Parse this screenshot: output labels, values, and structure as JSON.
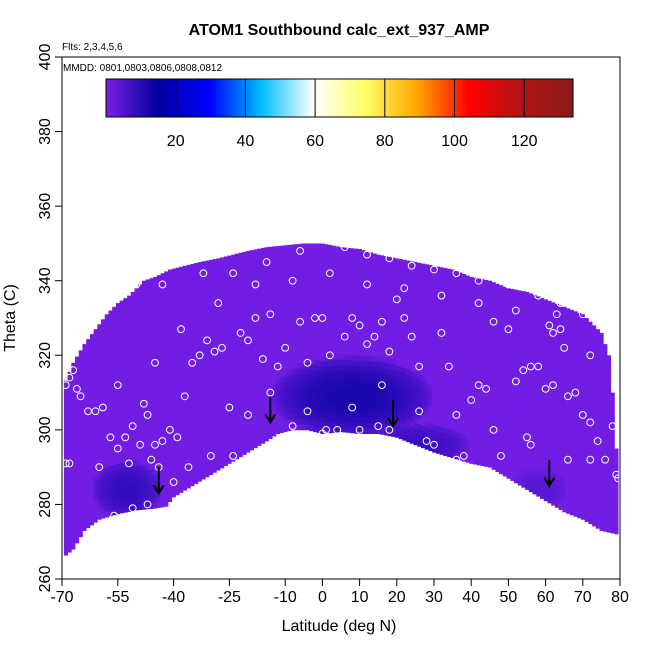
{
  "chart_data": {
    "type": "heatmap",
    "title": "ATOM1 Southbound calc_ext_937_AMP",
    "annotations": [
      "Flts: 2,3,4,5,6",
      "MMDD: 0801,0803,0806,0808,0812"
    ],
    "xlabel": "Latitude (deg N)",
    "ylabel": "Theta (C)",
    "xlim": [
      -70,
      80
    ],
    "ylim": [
      260,
      400
    ],
    "x_ticks": [
      -70,
      -55,
      -40,
      -25,
      -10,
      0,
      10,
      20,
      30,
      40,
      50,
      60,
      70,
      80
    ],
    "y_ticks": [
      260,
      280,
      300,
      320,
      340,
      360,
      380,
      400
    ],
    "x_ticks_text": [
      "-70",
      "-55",
      "-40",
      "-25",
      "-10",
      "0",
      "10",
      "20",
      "30",
      "40",
      "50",
      "60",
      "70",
      "80"
    ],
    "y_ticks_text": [
      "260",
      "280",
      "300",
      "320",
      "340",
      "360",
      "380",
      "400"
    ],
    "grid": false,
    "colorbar": {
      "placement": "top-inside",
      "range": [
        0,
        134
      ],
      "ticks": [
        20,
        40,
        60,
        80,
        100,
        120
      ],
      "ticks_text": [
        "20",
        "40",
        "60",
        "80",
        "100",
        "120"
      ],
      "colors": [
        "#7a1fe8",
        "#00009f",
        "#0000ff",
        "#00bfff",
        "#ffffff",
        "#ffff66",
        "#ffa500",
        "#ff0000",
        "#b01515",
        "#8b1a1a"
      ]
    },
    "upper_boundary": [
      [
        -69.5,
        312
      ],
      [
        -67,
        318
      ],
      [
        -64,
        323
      ],
      [
        -61,
        327
      ],
      [
        -58,
        331
      ],
      [
        -55,
        334
      ],
      [
        -52,
        336
      ],
      [
        -48,
        340
      ],
      [
        -45,
        341
      ],
      [
        -41,
        343
      ],
      [
        -37,
        344
      ],
      [
        -33,
        345
      ],
      [
        -28,
        346
      ],
      [
        -24,
        347
      ],
      [
        -20,
        348
      ],
      [
        -15,
        349
      ],
      [
        -10,
        349.5
      ],
      [
        -5,
        350
      ],
      [
        0,
        350
      ],
      [
        5,
        349
      ],
      [
        10,
        348.5
      ],
      [
        15,
        347
      ],
      [
        20,
        346
      ],
      [
        25,
        345
      ],
      [
        30,
        344
      ],
      [
        35,
        343
      ],
      [
        40,
        341
      ],
      [
        45,
        340
      ],
      [
        50,
        338
      ],
      [
        55,
        337
      ],
      [
        60,
        335
      ],
      [
        65,
        333
      ],
      [
        70,
        331
      ],
      [
        75,
        326
      ],
      [
        77,
        320
      ],
      [
        78,
        310
      ],
      [
        79,
        295
      ],
      [
        79.5,
        286
      ]
    ],
    "lower_boundary": [
      [
        -69.5,
        266
      ],
      [
        -67,
        268
      ],
      [
        -64,
        273
      ],
      [
        -60,
        276
      ],
      [
        -55,
        277.5
      ],
      [
        -50,
        278.5
      ],
      [
        -45,
        279
      ],
      [
        -42,
        279.5
      ],
      [
        -40,
        282
      ],
      [
        -35,
        285
      ],
      [
        -30,
        288
      ],
      [
        -25,
        291
      ],
      [
        -20,
        294
      ],
      [
        -15,
        297
      ],
      [
        -12,
        299
      ],
      [
        -8,
        300
      ],
      [
        -4,
        300
      ],
      [
        0,
        299
      ],
      [
        5,
        299.5
      ],
      [
        10,
        299
      ],
      [
        15,
        299
      ],
      [
        20,
        298
      ],
      [
        25,
        296
      ],
      [
        30,
        294
      ],
      [
        35,
        292.5
      ],
      [
        40,
        291
      ],
      [
        45,
        290
      ],
      [
        50,
        287
      ],
      [
        55,
        284
      ],
      [
        60,
        281
      ],
      [
        65,
        278
      ],
      [
        70,
        276
      ],
      [
        75,
        273
      ],
      [
        79.5,
        272
      ]
    ],
    "background_value": 1,
    "regions": [
      {
        "lat": [
          -14,
          30
        ],
        "theta": [
          298,
          320
        ],
        "peak_value": 12
      },
      {
        "lat": [
          -62,
          -43
        ],
        "theta": [
          276,
          292
        ],
        "peak_value": 9
      },
      {
        "lat": [
          10,
          40
        ],
        "theta": [
          290,
          302
        ],
        "peak_value": 8
      },
      {
        "lat": [
          50,
          66
        ],
        "theta": [
          278,
          290
        ],
        "peak_value": 4
      }
    ],
    "points": [
      [
        -69,
        312
      ],
      [
        -68,
        314
      ],
      [
        -67,
        316
      ],
      [
        -66,
        311
      ],
      [
        -65,
        309
      ],
      [
        -63,
        305
      ],
      [
        -61,
        305
      ],
      [
        -59,
        306
      ],
      [
        -57,
        298
      ],
      [
        -55,
        295
      ],
      [
        -53,
        298
      ],
      [
        -51,
        301
      ],
      [
        -49,
        296
      ],
      [
        -48,
        307
      ],
      [
        -47,
        304
      ],
      [
        -46,
        292
      ],
      [
        -45,
        296
      ],
      [
        -43,
        297
      ],
      [
        -41,
        300
      ],
      [
        -39,
        298
      ],
      [
        -37,
        309
      ],
      [
        -35,
        318
      ],
      [
        -33,
        320
      ],
      [
        -31,
        324
      ],
      [
        -29,
        321
      ],
      [
        -27,
        322
      ],
      [
        -25,
        306
      ],
      [
        -24,
        293
      ],
      [
        -22,
        326
      ],
      [
        -20,
        324
      ],
      [
        -18,
        330
      ],
      [
        -16,
        319
      ],
      [
        -14,
        331
      ],
      [
        -12,
        317
      ],
      [
        -10,
        322
      ],
      [
        -8,
        301
      ],
      [
        -6,
        329
      ],
      [
        -4,
        318
      ],
      [
        -2,
        330
      ],
      [
        0,
        299
      ],
      [
        0,
        330
      ],
      [
        1,
        300
      ],
      [
        2,
        320
      ],
      [
        4,
        300
      ],
      [
        6,
        325
      ],
      [
        8,
        330
      ],
      [
        10,
        300
      ],
      [
        10,
        328
      ],
      [
        12,
        323
      ],
      [
        14,
        325
      ],
      [
        15,
        301
      ],
      [
        16,
        329
      ],
      [
        18,
        300
      ],
      [
        18,
        321
      ],
      [
        20,
        335
      ],
      [
        22,
        330
      ],
      [
        24,
        325
      ],
      [
        26,
        317
      ],
      [
        28,
        297
      ],
      [
        30,
        296
      ],
      [
        32,
        326
      ],
      [
        34,
        317
      ],
      [
        36,
        292
      ],
      [
        38,
        293
      ],
      [
        40,
        308
      ],
      [
        42,
        312
      ],
      [
        44,
        311
      ],
      [
        46,
        329
      ],
      [
        48,
        293
      ],
      [
        50,
        327
      ],
      [
        52,
        313
      ],
      [
        54,
        316
      ],
      [
        55,
        298
      ],
      [
        56,
        317
      ],
      [
        58,
        317
      ],
      [
        60,
        311
      ],
      [
        61,
        328
      ],
      [
        62,
        312
      ],
      [
        63,
        331
      ],
      [
        64,
        327
      ],
      [
        65,
        322
      ],
      [
        66,
        309
      ],
      [
        68,
        310
      ],
      [
        70,
        304
      ],
      [
        72,
        302
      ],
      [
        74,
        297
      ],
      [
        76,
        292
      ],
      [
        78,
        301
      ],
      [
        79,
        288
      ],
      [
        79.5,
        287
      ],
      [
        -69,
        291
      ],
      [
        -68,
        291
      ],
      [
        -56,
        277
      ],
      [
        -51,
        279
      ],
      [
        -47,
        280
      ],
      [
        -42,
        278
      ],
      [
        -35,
        283
      ],
      [
        -28,
        287
      ],
      [
        -65,
        338
      ],
      [
        -58,
        337
      ],
      [
        -50,
        339
      ],
      [
        -43,
        339
      ],
      [
        -32,
        342
      ],
      [
        -24,
        342
      ],
      [
        -15,
        345
      ],
      [
        -6,
        348
      ],
      [
        0,
        351
      ],
      [
        6,
        349
      ],
      [
        12,
        347
      ],
      [
        18,
        346
      ],
      [
        24,
        344
      ],
      [
        30,
        343
      ],
      [
        36,
        342
      ],
      [
        42,
        340
      ],
      [
        50,
        339
      ],
      [
        58,
        336
      ],
      [
        64,
        334
      ],
      [
        70,
        331
      ],
      [
        -40,
        286
      ],
      [
        -36,
        290
      ],
      [
        -30,
        293
      ],
      [
        -20,
        304
      ],
      [
        -14,
        310
      ],
      [
        -4,
        305
      ],
      [
        8,
        306
      ],
      [
        16,
        312
      ],
      [
        26,
        305
      ],
      [
        36,
        304
      ],
      [
        46,
        300
      ],
      [
        56,
        296
      ],
      [
        66,
        292
      ],
      [
        72,
        292
      ],
      [
        -55,
        312
      ],
      [
        -45,
        318
      ],
      [
        -38,
        327
      ],
      [
        -28,
        334
      ],
      [
        -18,
        339
      ],
      [
        -8,
        340
      ],
      [
        2,
        342
      ],
      [
        12,
        339
      ],
      [
        22,
        338
      ],
      [
        32,
        336
      ],
      [
        42,
        334
      ],
      [
        52,
        332
      ],
      [
        62,
        326
      ],
      [
        72,
        320
      ],
      [
        -60,
        290
      ],
      [
        -52,
        291
      ],
      [
        -44,
        290
      ]
    ],
    "arrows": [
      [
        -44,
        283
      ],
      [
        -14,
        302
      ],
      [
        19,
        301
      ],
      [
        61,
        285
      ]
    ]
  }
}
